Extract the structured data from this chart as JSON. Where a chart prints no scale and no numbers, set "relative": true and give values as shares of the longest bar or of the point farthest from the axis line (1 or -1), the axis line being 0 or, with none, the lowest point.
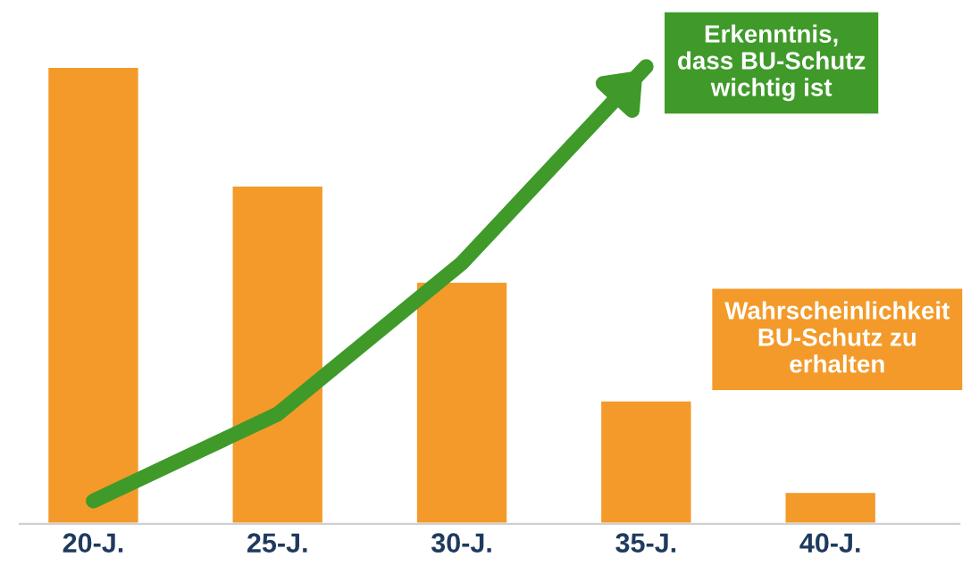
{
  "chart_data": {
    "type": "bar",
    "relative": true,
    "tick_labels": "x",
    "grid": false,
    "legend": false,
    "categories": [
      "20-J.",
      "25-J.",
      "30-J.",
      "35-J.",
      "40-J."
    ],
    "series": [
      {
        "name": "Wahrscheinlichkeit BU-Schutz zu erhalten",
        "color": "#f39a2a",
        "values": [
          1,
          0.74,
          0.53,
          0.27,
          0.07
        ]
      },
      {
        "name": "Erkenntnis, dass BU-Schutz wichtig ist",
        "type": "line",
        "color": "#3f9a2a",
        "values": [
          0.05,
          0.24,
          0.57,
          1,
          null
        ]
      }
    ]
  }
}
